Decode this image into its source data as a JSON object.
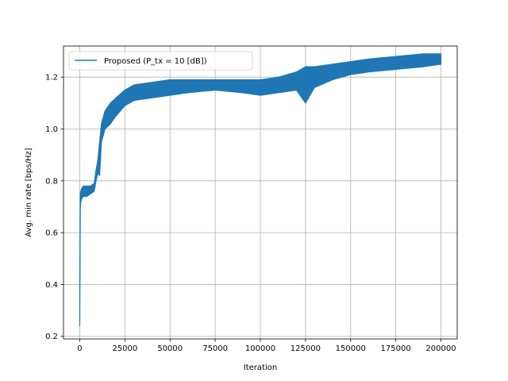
{
  "chart_data": {
    "type": "line",
    "title": "",
    "xlabel": "Iteration",
    "ylabel": "Avg. min rate [bps/Hz]",
    "xlim": [
      -9000,
      209000
    ],
    "ylim": [
      0.19,
      1.32
    ],
    "xticks": [
      0,
      25000,
      50000,
      75000,
      100000,
      125000,
      150000,
      175000,
      200000
    ],
    "xtick_labels": [
      "0",
      "25000",
      "50000",
      "75000",
      "100000",
      "125000",
      "150000",
      "175000",
      "200000"
    ],
    "yticks": [
      0.2,
      0.4,
      0.6,
      0.8,
      1.0,
      1.2
    ],
    "ytick_labels": [
      "0.2",
      "0.4",
      "0.6",
      "0.8",
      "1.0",
      "1.2"
    ],
    "grid": true,
    "legend_position": "upper-left",
    "series": [
      {
        "name": "Proposed (P_tx = 10 [dB])",
        "color": "#1f77b4",
        "note_band": "noisy curve drawn as band between lower and upper",
        "x": [
          0,
          300,
          600,
          1000,
          2000,
          4000,
          6000,
          8000,
          9000,
          10000,
          11000,
          12000,
          14000,
          17000,
          20000,
          25000,
          30000,
          40000,
          50000,
          60000,
          75000,
          90000,
          100000,
          110000,
          120000,
          125000,
          130000,
          140000,
          150000,
          160000,
          175000,
          190000,
          200000
        ],
        "lower": [
          0.24,
          0.7,
          0.72,
          0.73,
          0.74,
          0.74,
          0.75,
          0.76,
          0.8,
          0.83,
          0.82,
          0.95,
          1.0,
          1.02,
          1.05,
          1.09,
          1.11,
          1.12,
          1.13,
          1.14,
          1.15,
          1.14,
          1.13,
          1.14,
          1.15,
          1.1,
          1.16,
          1.19,
          1.21,
          1.22,
          1.23,
          1.24,
          1.25
        ],
        "upper": [
          0.41,
          0.75,
          0.76,
          0.77,
          0.78,
          0.78,
          0.78,
          0.79,
          0.84,
          0.88,
          0.95,
          1.02,
          1.07,
          1.1,
          1.12,
          1.15,
          1.17,
          1.18,
          1.19,
          1.19,
          1.19,
          1.19,
          1.19,
          1.2,
          1.22,
          1.24,
          1.24,
          1.25,
          1.26,
          1.27,
          1.28,
          1.29,
          1.29
        ]
      }
    ]
  }
}
